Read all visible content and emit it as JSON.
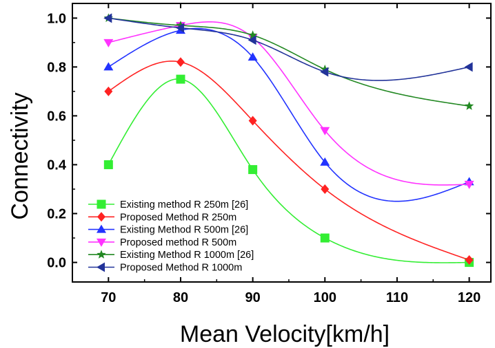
{
  "chart_data": {
    "type": "line",
    "title": "",
    "xlabel": "Mean Velocity[km/h]",
    "ylabel": "Connectivity",
    "xlim": [
      65,
      123
    ],
    "ylim": [
      -0.08,
      1.06
    ],
    "x_ticks": [
      "70",
      "80",
      "90",
      "100",
      "110",
      "120"
    ],
    "y_ticks": [
      "0.0",
      "0.2",
      "0.4",
      "0.6",
      "0.8",
      "1.0"
    ],
    "x": [
      70,
      80,
      90,
      100,
      120
    ],
    "legend_position": "bottom-left",
    "grid": false,
    "series": [
      {
        "name": "Existing method R 250m [26]",
        "values": [
          0.4,
          0.75,
          0.38,
          0.1,
          0.0
        ],
        "color": "#33ee33",
        "marker": "square"
      },
      {
        "name": "Proposed Method R 250m",
        "values": [
          0.7,
          0.82,
          0.58,
          0.3,
          0.01
        ],
        "color": "#ff2222",
        "marker": "diamond"
      },
      {
        "name": "Existing Method R 500m [26]",
        "values": [
          0.8,
          0.95,
          0.84,
          0.41,
          0.33
        ],
        "color": "#2233ff",
        "marker": "triangle-up"
      },
      {
        "name": "Proposed method R 500m",
        "values": [
          0.9,
          0.97,
          0.92,
          0.54,
          0.32
        ],
        "color": "#ff33ff",
        "marker": "triangle-down"
      },
      {
        "name": "Existing Method R 1000m [26]",
        "values": [
          1.0,
          0.97,
          0.93,
          0.79,
          0.64
        ],
        "color": "#228822",
        "marker": "star"
      },
      {
        "name": "Proposed Method R 1000m",
        "values": [
          1.0,
          0.96,
          0.91,
          0.78,
          0.8
        ],
        "color": "#223399",
        "marker": "triangle-left"
      }
    ]
  }
}
